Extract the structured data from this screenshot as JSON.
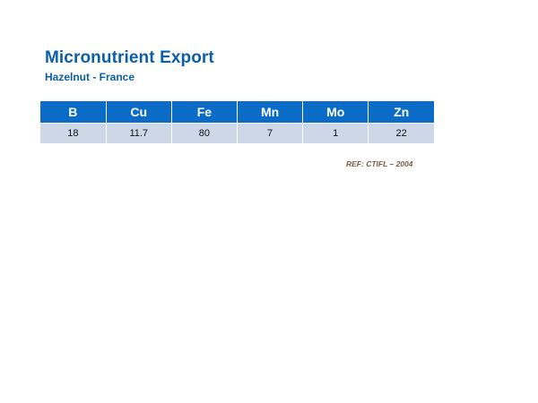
{
  "title": "Micronutrient Export",
  "subtitle": "Hazelnut - France",
  "table": {
    "headers": [
      "B",
      "Cu",
      "Fe",
      "Mn",
      "Mo",
      "Zn"
    ],
    "values": [
      "18",
      "11.7",
      "80",
      "7",
      "1",
      "22"
    ]
  },
  "reference": "REF: CTIFL – 2004",
  "colors": {
    "title": "#0a5fa8",
    "header_bg": "#0a6cc6",
    "row_bg": "#cdd7e8",
    "reference": "#7a5d45"
  }
}
